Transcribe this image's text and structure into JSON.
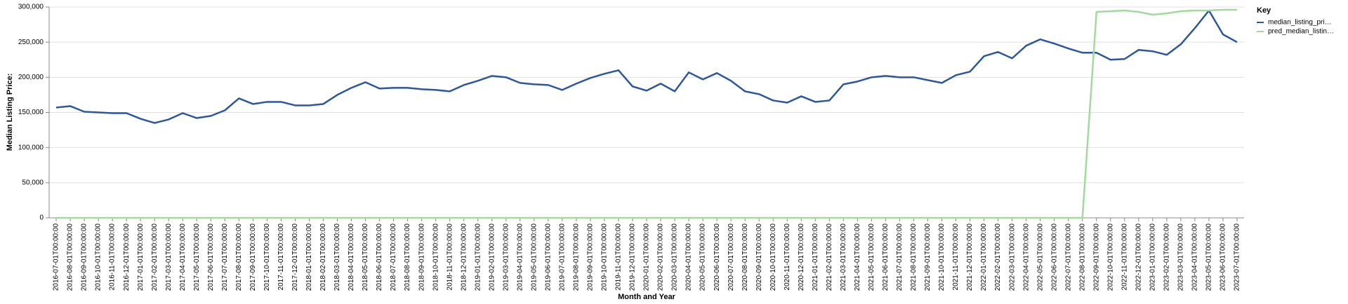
{
  "chart_data": {
    "type": "line",
    "y_label": "Median Listing Price:",
    "x_label": "Month and Year",
    "legend_title": "Key",
    "legend_position": "top-right",
    "grid": true,
    "categories": [
      "2016-07-01T00:00:00",
      "2016-08-01T00:00:00",
      "2016-09-01T00:00:00",
      "2016-10-01T00:00:00",
      "2016-11-01T00:00:00",
      "2016-12-01T00:00:00",
      "2017-01-01T00:00:00",
      "2017-02-01T00:00:00",
      "2017-03-01T00:00:00",
      "2017-04-01T00:00:00",
      "2017-05-01T00:00:00",
      "2017-06-01T00:00:00",
      "2017-07-01T00:00:00",
      "2017-08-01T00:00:00",
      "2017-09-01T00:00:00",
      "2017-10-01T00:00:00",
      "2017-11-01T00:00:00",
      "2017-12-01T00:00:00",
      "2018-01-01T00:00:00",
      "2018-02-01T00:00:00",
      "2018-03-01T00:00:00",
      "2018-04-01T00:00:00",
      "2018-05-01T00:00:00",
      "2018-06-01T00:00:00",
      "2018-07-01T00:00:00",
      "2018-08-01T00:00:00",
      "2018-09-01T00:00:00",
      "2018-10-01T00:00:00",
      "2018-11-01T00:00:00",
      "2018-12-01T00:00:00",
      "2019-01-01T00:00:00",
      "2019-02-01T00:00:00",
      "2019-03-01T00:00:00",
      "2019-04-01T00:00:00",
      "2019-05-01T00:00:00",
      "2019-06-01T00:00:00",
      "2019-07-01T00:00:00",
      "2019-08-01T00:00:00",
      "2019-09-01T00:00:00",
      "2019-10-01T00:00:00",
      "2019-11-01T00:00:00",
      "2019-12-01T00:00:00",
      "2020-01-01T00:00:00",
      "2020-02-01T00:00:00",
      "2020-03-01T00:00:00",
      "2020-04-01T00:00:00",
      "2020-05-01T00:00:00",
      "2020-06-01T00:00:00",
      "2020-07-01T00:00:00",
      "2020-08-01T00:00:00",
      "2020-09-01T00:00:00",
      "2020-10-01T00:00:00",
      "2020-11-01T00:00:00",
      "2020-12-01T00:00:00",
      "2021-01-01T00:00:00",
      "2021-02-01T00:00:00",
      "2021-03-01T00:00:00",
      "2021-04-01T00:00:00",
      "2021-05-01T00:00:00",
      "2021-06-01T00:00:00",
      "2021-07-01T00:00:00",
      "2021-08-01T00:00:00",
      "2021-09-01T00:00:00",
      "2021-10-01T00:00:00",
      "2021-11-01T00:00:00",
      "2021-12-01T00:00:00",
      "2022-01-01T00:00:00",
      "2022-02-01T00:00:00",
      "2022-03-01T00:00:00",
      "2022-04-01T00:00:00",
      "2022-05-01T00:00:00",
      "2022-06-01T00:00:00",
      "2022-07-01T00:00:00",
      "2022-08-01T00:00:00",
      "2022-09-01T00:00:00",
      "2022-10-01T00:00:00",
      "2022-11-01T00:00:00",
      "2022-12-01T00:00:00",
      "2023-01-01T00:00:00",
      "2023-02-01T00:00:00",
      "2023-03-01T00:00:00",
      "2023-04-01T00:00:00",
      "2023-05-01T00:00:00",
      "2023-06-01T00:00:00",
      "2023-07-01T00:00:00"
    ],
    "series": [
      {
        "name": "median_listing_pri…",
        "color": "#2c579e",
        "values": [
          157000,
          159000,
          151000,
          150000,
          149000,
          149000,
          141000,
          135000,
          140000,
          149000,
          142000,
          145000,
          153000,
          170000,
          162000,
          165000,
          165000,
          160000,
          160000,
          162000,
          175000,
          185000,
          193000,
          184000,
          185000,
          185000,
          183000,
          182000,
          180000,
          189000,
          195000,
          202000,
          200000,
          192000,
          190000,
          189000,
          182000,
          191000,
          199000,
          205000,
          210000,
          187000,
          181000,
          191000,
          180000,
          207000,
          197000,
          206000,
          195000,
          180000,
          176000,
          167000,
          164000,
          173000,
          165000,
          167000,
          190000,
          194000,
          200000,
          202000,
          200000,
          200000,
          196000,
          192000,
          203000,
          208000,
          230000,
          236000,
          227000,
          245000,
          254000,
          248000,
          241000,
          235000,
          235000,
          225000,
          226000,
          239000,
          237000,
          232000,
          247000,
          270000,
          295000,
          261000,
          250000
        ]
      },
      {
        "name": "pred_median_listin…",
        "color": "#a2d99c",
        "values": [
          0,
          0,
          0,
          0,
          0,
          0,
          0,
          0,
          0,
          0,
          0,
          0,
          0,
          0,
          0,
          0,
          0,
          0,
          0,
          0,
          0,
          0,
          0,
          0,
          0,
          0,
          0,
          0,
          0,
          0,
          0,
          0,
          0,
          0,
          0,
          0,
          0,
          0,
          0,
          0,
          0,
          0,
          0,
          0,
          0,
          0,
          0,
          0,
          0,
          0,
          0,
          0,
          0,
          0,
          0,
          0,
          0,
          0,
          0,
          0,
          0,
          0,
          0,
          0,
          0,
          0,
          0,
          0,
          0,
          0,
          0,
          0,
          0,
          0,
          293000,
          294000,
          295000,
          293000,
          289000,
          291000,
          294000,
          295000,
          295000,
          296000,
          296000
        ]
      }
    ],
    "ylim": [
      0,
      300000
    ],
    "yticks": [
      0,
      {
        "value": 50000,
        "label": "50,000"
      },
      {
        "value": 100000,
        "label": "100,000"
      },
      {
        "value": 150000,
        "label": "150,000"
      },
      {
        "value": 200000,
        "label": "200,000"
      },
      {
        "value": 250000,
        "label": "250,000"
      },
      {
        "value": 300000,
        "label": "300,000"
      }
    ]
  }
}
